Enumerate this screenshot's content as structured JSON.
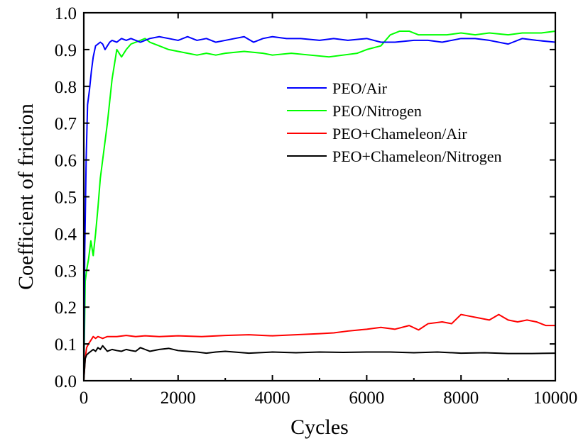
{
  "chart_data": {
    "type": "line",
    "xlabel": "Cycles",
    "ylabel": "Coefficient of friction",
    "xlim": [
      0,
      10000
    ],
    "ylim": [
      0.0,
      1.0
    ],
    "x_ticks": [
      0,
      2000,
      4000,
      6000,
      8000,
      10000
    ],
    "x_tick_labels": [
      "0",
      "2000",
      "4000",
      "6000",
      "8000",
      "10000"
    ],
    "y_ticks": [
      0.0,
      0.1,
      0.2,
      0.3,
      0.4,
      0.5,
      0.6,
      0.7,
      0.8,
      0.9,
      1.0
    ],
    "y_tick_labels": [
      "0.0",
      "0.1",
      "0.2",
      "0.3",
      "0.4",
      "0.5",
      "0.6",
      "0.7",
      "0.8",
      "0.9",
      "1.0"
    ],
    "grid": false,
    "legend_position": "upper-right",
    "series": [
      {
        "name": "PEO/Air",
        "color": "#0000ff",
        "x": [
          0,
          20,
          50,
          80,
          120,
          160,
          200,
          250,
          300,
          350,
          400,
          450,
          500,
          550,
          600,
          700,
          800,
          900,
          1000,
          1200,
          1400,
          1600,
          1800,
          2000,
          2200,
          2400,
          2600,
          2800,
          3000,
          3200,
          3400,
          3600,
          3800,
          4000,
          4300,
          4600,
          5000,
          5300,
          5600,
          6000,
          6300,
          6600,
          7000,
          7300,
          7600,
          8000,
          8300,
          8600,
          9000,
          9300,
          9600,
          10000
        ],
        "y": [
          0.0,
          0.35,
          0.6,
          0.75,
          0.79,
          0.84,
          0.88,
          0.91,
          0.915,
          0.92,
          0.915,
          0.9,
          0.91,
          0.92,
          0.925,
          0.92,
          0.93,
          0.925,
          0.93,
          0.92,
          0.93,
          0.935,
          0.93,
          0.925,
          0.935,
          0.925,
          0.93,
          0.92,
          0.925,
          0.93,
          0.935,
          0.92,
          0.93,
          0.935,
          0.93,
          0.93,
          0.925,
          0.93,
          0.925,
          0.93,
          0.92,
          0.92,
          0.925,
          0.925,
          0.92,
          0.93,
          0.93,
          0.925,
          0.915,
          0.93,
          0.925,
          0.92
        ]
      },
      {
        "name": "PEO/Nitrogen",
        "color": "#00ff00",
        "x": [
          0,
          30,
          60,
          100,
          150,
          200,
          250,
          300,
          350,
          400,
          500,
          600,
          700,
          800,
          900,
          1000,
          1100,
          1200,
          1300,
          1400,
          1600,
          1800,
          2000,
          2200,
          2400,
          2600,
          2800,
          3000,
          3400,
          3800,
          4000,
          4400,
          4800,
          5200,
          5500,
          5800,
          6000,
          6300,
          6500,
          6700,
          6900,
          7100,
          7400,
          7700,
          8000,
          8300,
          8600,
          9000,
          9300,
          9700,
          10000
        ],
        "y": [
          0.0,
          0.27,
          0.3,
          0.33,
          0.38,
          0.34,
          0.4,
          0.47,
          0.55,
          0.6,
          0.7,
          0.82,
          0.9,
          0.88,
          0.9,
          0.915,
          0.92,
          0.925,
          0.93,
          0.92,
          0.91,
          0.9,
          0.895,
          0.89,
          0.885,
          0.89,
          0.885,
          0.89,
          0.895,
          0.89,
          0.885,
          0.89,
          0.885,
          0.88,
          0.885,
          0.89,
          0.9,
          0.91,
          0.94,
          0.95,
          0.95,
          0.94,
          0.94,
          0.94,
          0.945,
          0.94,
          0.945,
          0.94,
          0.945,
          0.945,
          0.95
        ]
      },
      {
        "name": "PEO+Chameleon/Air",
        "color": "#ff0000",
        "x": [
          0,
          30,
          60,
          100,
          150,
          200,
          250,
          300,
          400,
          500,
          700,
          900,
          1100,
          1300,
          1600,
          2000,
          2500,
          3000,
          3500,
          4000,
          4500,
          5000,
          5300,
          5600,
          6000,
          6300,
          6600,
          6900,
          7100,
          7300,
          7600,
          7800,
          8000,
          8200,
          8400,
          8600,
          8800,
          9000,
          9200,
          9400,
          9600,
          9800,
          10000
        ],
        "y": [
          0.0,
          0.06,
          0.09,
          0.1,
          0.11,
          0.12,
          0.115,
          0.12,
          0.115,
          0.12,
          0.12,
          0.123,
          0.12,
          0.122,
          0.12,
          0.122,
          0.12,
          0.123,
          0.125,
          0.122,
          0.125,
          0.128,
          0.13,
          0.135,
          0.14,
          0.145,
          0.14,
          0.15,
          0.138,
          0.155,
          0.16,
          0.155,
          0.18,
          0.175,
          0.17,
          0.165,
          0.18,
          0.165,
          0.16,
          0.165,
          0.16,
          0.15,
          0.15
        ]
      },
      {
        "name": "PEO+Chameleon/Nitrogen",
        "color": "#000000",
        "x": [
          0,
          30,
          60,
          100,
          150,
          200,
          250,
          300,
          350,
          400,
          500,
          600,
          700,
          800,
          900,
          1000,
          1100,
          1200,
          1300,
          1400,
          1600,
          1800,
          2000,
          2200,
          2400,
          2600,
          2800,
          3000,
          3500,
          4000,
          4500,
          5000,
          5500,
          6000,
          6500,
          7000,
          7500,
          8000,
          8500,
          9000,
          9500,
          10000
        ],
        "y": [
          0.0,
          0.06,
          0.07,
          0.075,
          0.08,
          0.085,
          0.08,
          0.09,
          0.085,
          0.095,
          0.08,
          0.085,
          0.082,
          0.08,
          0.085,
          0.082,
          0.08,
          0.09,
          0.085,
          0.08,
          0.085,
          0.088,
          0.082,
          0.08,
          0.078,
          0.075,
          0.078,
          0.08,
          0.075,
          0.078,
          0.076,
          0.078,
          0.077,
          0.078,
          0.078,
          0.076,
          0.078,
          0.075,
          0.076,
          0.074,
          0.074,
          0.075
        ]
      }
    ]
  }
}
